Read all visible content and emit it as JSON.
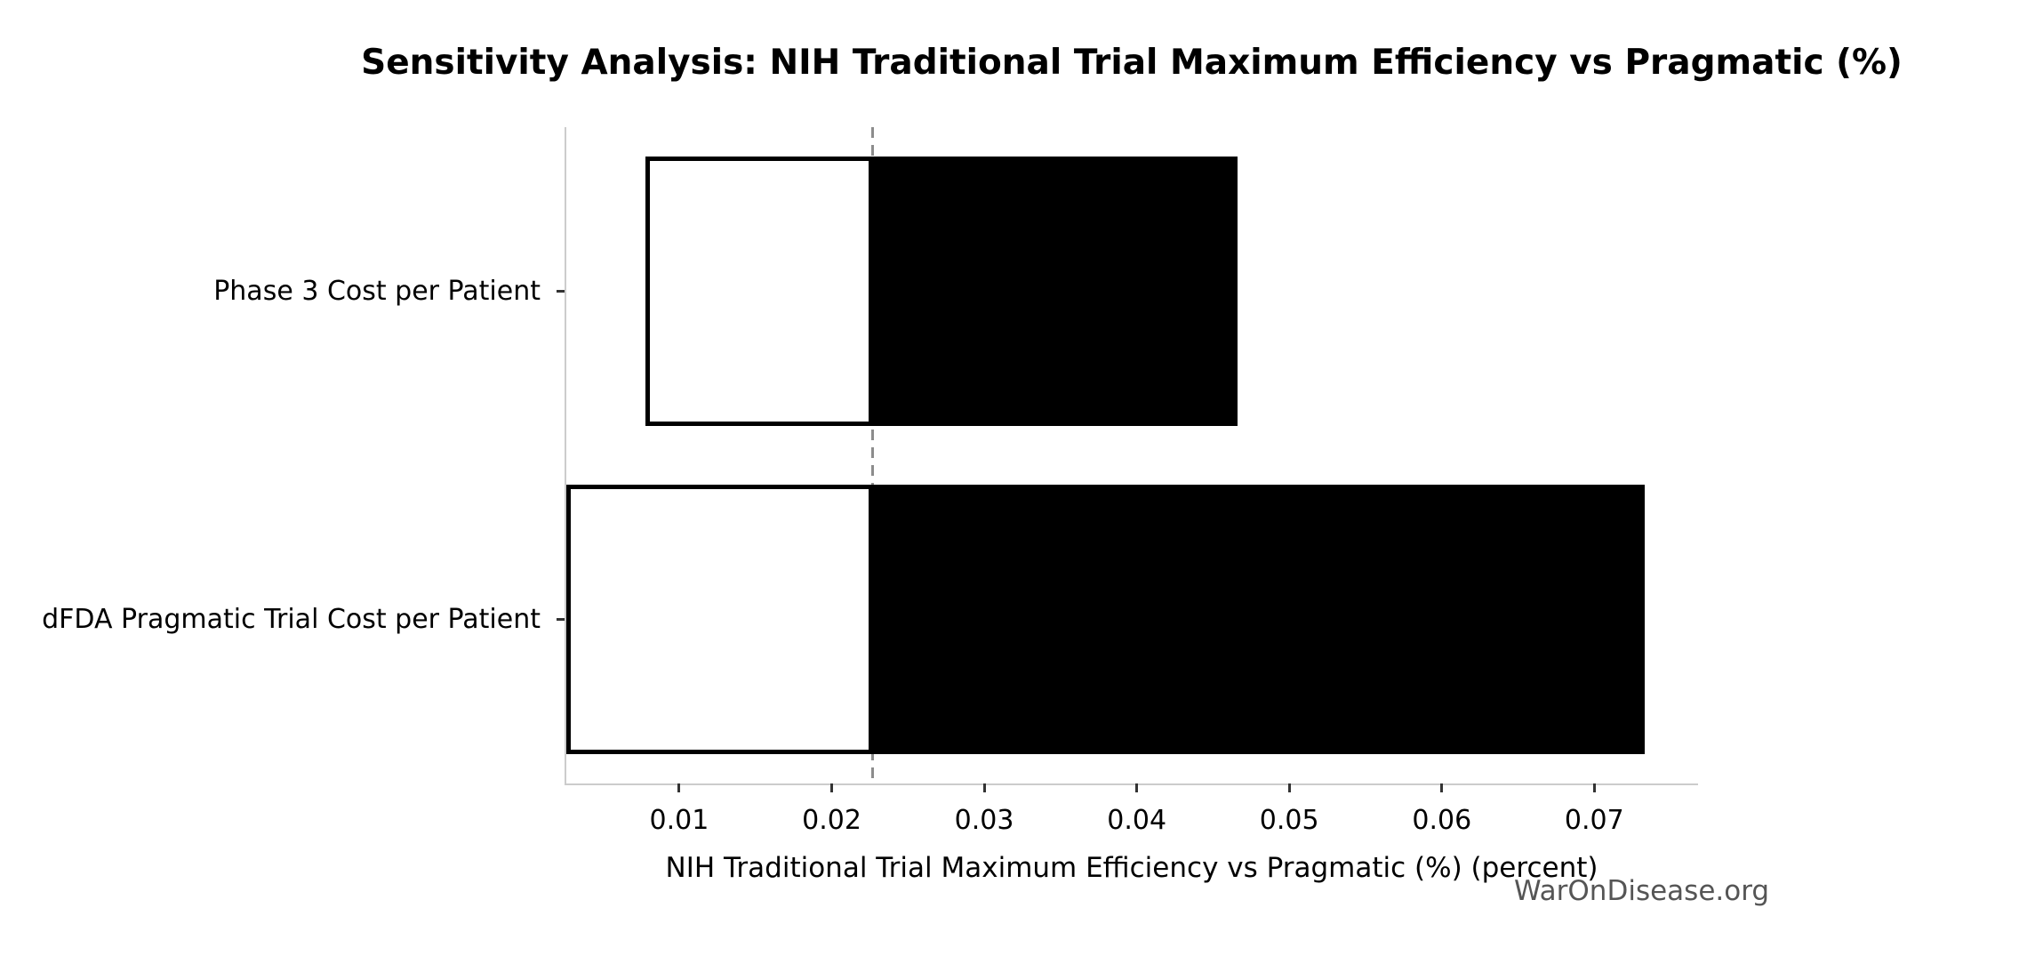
{
  "watermark": "WarOnDisease.org",
  "chart_data": {
    "type": "bar",
    "subtype": "tornado-sensitivity",
    "orientation": "horizontal",
    "title": "Sensitivity Analysis: NIH Traditional Trial Maximum Efficiency vs Pragmatic (%)",
    "xlabel": "NIH Traditional Trial Maximum Efficiency vs Pragmatic (%) (percent)",
    "ylabel": "",
    "categories": [
      "Phase 3 Cost per Patient",
      "dFDA Pragmatic Trial Cost per Patient"
    ],
    "series": [
      {
        "name": "low",
        "values": [
          0.0078,
          0.0026
        ]
      },
      {
        "name": "high",
        "values": [
          0.0466,
          0.0733
        ]
      }
    ],
    "baseline": 0.0227,
    "xlim": [
      0.0026,
      0.0768
    ],
    "xticks": [
      0.01,
      0.02,
      0.03,
      0.04,
      0.05,
      0.06,
      0.07
    ],
    "xtick_labels": [
      "0.01",
      "0.02",
      "0.03",
      "0.04",
      "0.05",
      "0.06",
      "0.07"
    ],
    "grid": false,
    "legend": false,
    "bar_height_fraction": 0.82,
    "colors": {
      "low_fill": "#ffffff",
      "high_fill": "#000000",
      "bar_edge": "#000000",
      "baseline_line": "#8c8c8c",
      "spine": "#cccccc",
      "tick_mark": "#333333",
      "text": "#000000",
      "watermark": "#555555",
      "background": "#ffffff"
    }
  }
}
